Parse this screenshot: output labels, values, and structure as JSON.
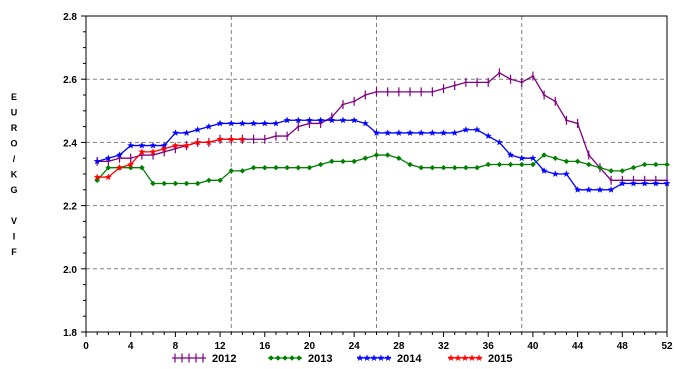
{
  "chart_data": {
    "type": "line",
    "title": "",
    "xlabel": "",
    "ylabel": "EURO/KG VIF",
    "xlim": [
      0,
      52
    ],
    "ylim": [
      1.8,
      2.8
    ],
    "x_ticks": [
      0,
      4,
      8,
      12,
      16,
      20,
      24,
      28,
      32,
      36,
      40,
      44,
      48,
      52
    ],
    "y_ticks": [
      1.8,
      2.0,
      2.2,
      2.4,
      2.6,
      2.8
    ],
    "y_tick_labels": [
      "1.8",
      "2.0",
      "2.2",
      "2.4",
      "2.6",
      "2.8"
    ],
    "y_gridlines": [
      2.0,
      2.2,
      2.4,
      2.6
    ],
    "x_gridlines": [
      13,
      26,
      39
    ],
    "grid_style": "dashed",
    "legend_position": "bottom",
    "series": [
      {
        "name": "2012",
        "color": "#800080",
        "marker": "plus",
        "x": [
          1,
          2,
          3,
          4,
          5,
          6,
          7,
          8,
          9,
          10,
          11,
          12,
          13,
          14,
          15,
          16,
          17,
          18,
          19,
          20,
          21,
          22,
          23,
          24,
          25,
          26,
          27,
          28,
          29,
          30,
          31,
          32,
          33,
          34,
          35,
          36,
          37,
          38,
          39,
          40,
          41,
          42,
          43,
          44,
          45,
          46,
          47,
          48,
          49,
          50,
          51,
          52
        ],
        "values": [
          2.34,
          2.34,
          2.35,
          2.35,
          2.36,
          2.36,
          2.37,
          2.38,
          2.39,
          2.4,
          2.4,
          2.41,
          2.41,
          2.41,
          2.41,
          2.41,
          2.42,
          2.42,
          2.45,
          2.46,
          2.46,
          2.48,
          2.52,
          2.53,
          2.55,
          2.56,
          2.56,
          2.56,
          2.56,
          2.56,
          2.56,
          2.57,
          2.58,
          2.59,
          2.59,
          2.59,
          2.62,
          2.6,
          2.59,
          2.61,
          2.55,
          2.53,
          2.47,
          2.46,
          2.36,
          2.32,
          2.28,
          2.28,
          2.28,
          2.28,
          2.28,
          2.28
        ]
      },
      {
        "name": "2013",
        "color": "#008000",
        "marker": "diamond",
        "x": [
          1,
          2,
          3,
          4,
          5,
          6,
          7,
          8,
          9,
          10,
          11,
          12,
          13,
          14,
          15,
          16,
          17,
          18,
          19,
          20,
          21,
          22,
          23,
          24,
          25,
          26,
          27,
          28,
          29,
          30,
          31,
          32,
          33,
          34,
          35,
          36,
          37,
          38,
          39,
          40,
          41,
          42,
          43,
          44,
          45,
          46,
          47,
          48,
          49,
          50,
          51,
          52
        ],
        "values": [
          2.28,
          2.32,
          2.32,
          2.32,
          2.32,
          2.27,
          2.27,
          2.27,
          2.27,
          2.27,
          2.28,
          2.28,
          2.31,
          2.31,
          2.32,
          2.32,
          2.32,
          2.32,
          2.32,
          2.32,
          2.33,
          2.34,
          2.34,
          2.34,
          2.35,
          2.36,
          2.36,
          2.35,
          2.33,
          2.32,
          2.32,
          2.32,
          2.32,
          2.32,
          2.32,
          2.33,
          2.33,
          2.33,
          2.33,
          2.33,
          2.36,
          2.35,
          2.34,
          2.34,
          2.33,
          2.32,
          2.31,
          2.31,
          2.32,
          2.33,
          2.33,
          2.33
        ]
      },
      {
        "name": "2014",
        "color": "#0000ff",
        "marker": "star",
        "x": [
          1,
          2,
          3,
          4,
          5,
          6,
          7,
          8,
          9,
          10,
          11,
          12,
          13,
          14,
          15,
          16,
          17,
          18,
          19,
          20,
          21,
          22,
          23,
          24,
          25,
          26,
          27,
          28,
          29,
          30,
          31,
          32,
          33,
          34,
          35,
          36,
          37,
          38,
          39,
          40,
          41,
          42,
          43,
          44,
          45,
          46,
          47,
          48,
          49,
          50,
          51,
          52
        ],
        "values": [
          2.34,
          2.35,
          2.36,
          2.39,
          2.39,
          2.39,
          2.39,
          2.43,
          2.43,
          2.44,
          2.45,
          2.46,
          2.46,
          2.46,
          2.46,
          2.46,
          2.46,
          2.47,
          2.47,
          2.47,
          2.47,
          2.47,
          2.47,
          2.47,
          2.46,
          2.43,
          2.43,
          2.43,
          2.43,
          2.43,
          2.43,
          2.43,
          2.43,
          2.44,
          2.44,
          2.42,
          2.4,
          2.36,
          2.35,
          2.35,
          2.31,
          2.3,
          2.3,
          2.25,
          2.25,
          2.25,
          2.25,
          2.27,
          2.27,
          2.27,
          2.27,
          2.27
        ]
      },
      {
        "name": "2015",
        "color": "#ff0000",
        "marker": "star",
        "x": [
          1,
          2,
          3,
          4,
          5,
          6,
          7,
          8,
          9,
          10,
          11,
          12,
          13,
          14
        ],
        "values": [
          2.29,
          2.29,
          2.32,
          2.33,
          2.37,
          2.37,
          2.38,
          2.39,
          2.39,
          2.4,
          2.4,
          2.41,
          2.41,
          2.41
        ]
      }
    ]
  }
}
